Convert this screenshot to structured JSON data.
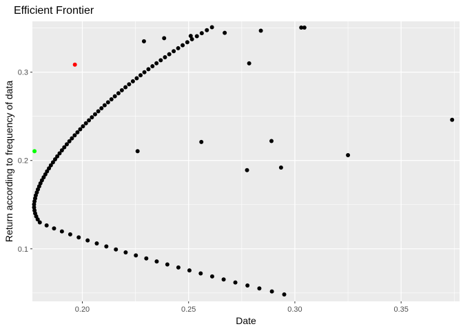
{
  "chart_data": {
    "type": "scatter",
    "title": "Efficient Frontier",
    "xlabel": "Date",
    "ylabel": "Return according to frequency of data",
    "xlim": [
      0.1765,
      0.3775
    ],
    "ylim": [
      0.0405,
      0.3575
    ],
    "x_ticks": [
      0.2,
      0.25,
      0.3,
      0.35
    ],
    "x_tick_labels": [
      "0.20",
      "0.25",
      "0.30",
      "0.35"
    ],
    "y_ticks": [
      0.1,
      0.2,
      0.3
    ],
    "y_tick_labels": [
      "0.1",
      "0.2",
      "0.3"
    ],
    "grid": true,
    "panel_background": "#ebebeb",
    "grid_color": "#ffffff",
    "legend": "none",
    "series": [
      {
        "color": "#000000",
        "points": [
          [
            0.295,
            0.0483
          ],
          [
            0.2892,
            0.0517
          ],
          [
            0.2833,
            0.0551
          ],
          [
            0.2777,
            0.0585
          ],
          [
            0.272,
            0.0619
          ],
          [
            0.2665,
            0.0653
          ],
          [
            0.2611,
            0.0687
          ],
          [
            0.2557,
            0.0721
          ],
          [
            0.2504,
            0.0755
          ],
          [
            0.2452,
            0.0789
          ],
          [
            0.24,
            0.0823
          ],
          [
            0.235,
            0.0857
          ],
          [
            0.2301,
            0.0891
          ],
          [
            0.2252,
            0.0925
          ],
          [
            0.2204,
            0.0959
          ],
          [
            0.2158,
            0.0993
          ],
          [
            0.2113,
            0.1027
          ],
          [
            0.2068,
            0.1061
          ],
          [
            0.2025,
            0.1095
          ],
          [
            0.1983,
            0.1129
          ],
          [
            0.1943,
            0.1163
          ],
          [
            0.1904,
            0.1197
          ],
          [
            0.1867,
            0.1231
          ],
          [
            0.1832,
            0.1265
          ],
          [
            0.18,
            0.1299
          ],
          [
            0.179,
            0.1333
          ],
          [
            0.1783,
            0.1367
          ],
          [
            0.1778,
            0.1401
          ],
          [
            0.1775,
            0.1435
          ],
          [
            0.1773,
            0.1469
          ],
          [
            0.1773,
            0.1503
          ],
          [
            0.1775,
            0.1537
          ],
          [
            0.1778,
            0.1571
          ],
          [
            0.1781,
            0.1605
          ],
          [
            0.1786,
            0.1639
          ],
          [
            0.1791,
            0.1673
          ],
          [
            0.1797,
            0.1707
          ],
          [
            0.1803,
            0.1741
          ],
          [
            0.181,
            0.1775
          ],
          [
            0.1818,
            0.1809
          ],
          [
            0.1826,
            0.1843
          ],
          [
            0.1834,
            0.1877
          ],
          [
            0.1843,
            0.1911
          ],
          [
            0.1852,
            0.1945
          ],
          [
            0.1862,
            0.1979
          ],
          [
            0.1872,
            0.2013
          ],
          [
            0.1882,
            0.2047
          ],
          [
            0.1893,
            0.2081
          ],
          [
            0.1904,
            0.2115
          ],
          [
            0.1915,
            0.2149
          ],
          [
            0.1927,
            0.2183
          ],
          [
            0.1939,
            0.2217
          ],
          [
            0.1951,
            0.2251
          ],
          [
            0.1964,
            0.2285
          ],
          [
            0.1977,
            0.2319
          ],
          [
            0.199,
            0.2353
          ],
          [
            0.2003,
            0.2387
          ],
          [
            0.2017,
            0.2421
          ],
          [
            0.2031,
            0.2455
          ],
          [
            0.2045,
            0.2489
          ],
          [
            0.206,
            0.2523
          ],
          [
            0.2075,
            0.2557
          ],
          [
            0.209,
            0.2591
          ],
          [
            0.2105,
            0.2625
          ],
          [
            0.2121,
            0.2659
          ],
          [
            0.2137,
            0.2693
          ],
          [
            0.2153,
            0.2727
          ],
          [
            0.217,
            0.2761
          ],
          [
            0.2186,
            0.2795
          ],
          [
            0.2203,
            0.2829
          ],
          [
            0.222,
            0.2863
          ],
          [
            0.2238,
            0.2897
          ],
          [
            0.2256,
            0.2931
          ],
          [
            0.2274,
            0.2965
          ],
          [
            0.2292,
            0.2999
          ],
          [
            0.2311,
            0.3033
          ],
          [
            0.233,
            0.3067
          ],
          [
            0.2349,
            0.3101
          ],
          [
            0.2369,
            0.3135
          ],
          [
            0.2389,
            0.3169
          ],
          [
            0.2409,
            0.3203
          ],
          [
            0.243,
            0.3237
          ],
          [
            0.2451,
            0.3271
          ],
          [
            0.2472,
            0.3305
          ],
          [
            0.2494,
            0.3339
          ],
          [
            0.2516,
            0.3373
          ],
          [
            0.2539,
            0.3407
          ],
          [
            0.2562,
            0.3441
          ],
          [
            0.2586,
            0.3475
          ],
          [
            0.261,
            0.3509
          ]
        ]
      },
      {
        "color": "#000000",
        "points": [
          [
            0.226,
            0.2105
          ],
          [
            0.256,
            0.221
          ],
          [
            0.2775,
            0.189
          ],
          [
            0.289,
            0.222
          ],
          [
            0.2935,
            0.192
          ],
          [
            0.325,
            0.206
          ],
          [
            0.374,
            0.246
          ],
          [
            0.2785,
            0.31
          ],
          [
            0.284,
            0.347
          ],
          [
            0.303,
            0.3505
          ],
          [
            0.3045,
            0.3505
          ],
          [
            0.267,
            0.3445
          ],
          [
            0.251,
            0.341
          ],
          [
            0.2385,
            0.3385
          ],
          [
            0.229,
            0.335
          ]
        ]
      },
      {
        "color": "#ff0000",
        "points": [
          [
            0.1965,
            0.3085
          ]
        ]
      },
      {
        "color": "#00ff00",
        "points": [
          [
            0.1775,
            0.2105
          ]
        ]
      }
    ]
  }
}
